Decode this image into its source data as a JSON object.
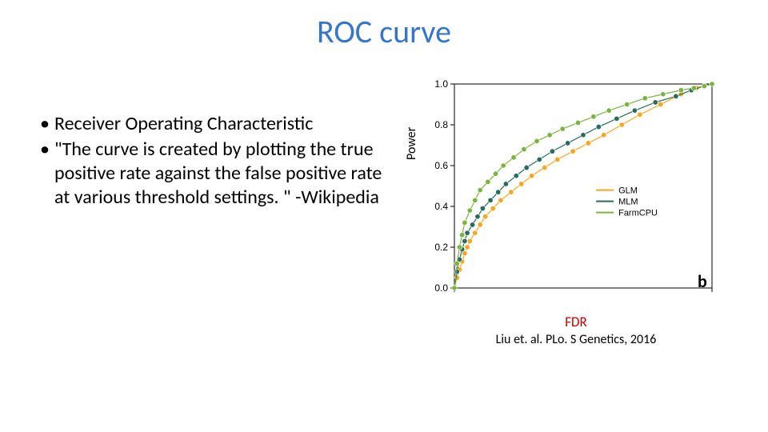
{
  "title": "ROC curve",
  "bullets": [
    "Receiver Operating Characteristic",
    "\"The curve is created by plotting the true positive rate against the false positive rate at various threshold settings. \" -Wikipedia"
  ],
  "chart": {
    "type": "line-with-markers",
    "ylabel": "Power",
    "xlabel": "FDR",
    "panel_label": "b",
    "background_color": "#ffffff",
    "axis_color": "#000000",
    "tick_fontsize": 12,
    "ylim": [
      0.0,
      1.0
    ],
    "yticks": [
      0.0,
      0.2,
      0.4,
      0.6,
      0.8,
      1.0
    ],
    "xlim": [
      0.0,
      1.0
    ],
    "xticks_hidden": true,
    "marker_style": "circle",
    "marker_size": 3.2,
    "line_width": 1.2,
    "legend": {
      "position": "right-inside",
      "fontsize": 11,
      "items": [
        {
          "label": "GLM",
          "color": "#f5a623"
        },
        {
          "label": "MLM",
          "color": "#2a6b5f"
        },
        {
          "label": "FarmCPU",
          "color": "#7cb342"
        }
      ]
    },
    "series": [
      {
        "name": "GLM",
        "color": "#f5a623",
        "x": [
          0.0,
          0.01,
          0.02,
          0.03,
          0.04,
          0.05,
          0.06,
          0.08,
          0.1,
          0.12,
          0.15,
          0.18,
          0.22,
          0.26,
          0.3,
          0.35,
          0.4,
          0.46,
          0.52,
          0.58,
          0.65,
          0.72,
          0.8,
          0.88,
          0.94,
          1.0
        ],
        "y": [
          0.0,
          0.05,
          0.09,
          0.13,
          0.17,
          0.2,
          0.23,
          0.27,
          0.31,
          0.35,
          0.39,
          0.43,
          0.47,
          0.51,
          0.55,
          0.59,
          0.63,
          0.67,
          0.71,
          0.75,
          0.8,
          0.85,
          0.9,
          0.95,
          0.98,
          1.0
        ]
      },
      {
        "name": "MLM",
        "color": "#2a6b5f",
        "x": [
          0.0,
          0.01,
          0.02,
          0.03,
          0.04,
          0.05,
          0.07,
          0.09,
          0.11,
          0.14,
          0.17,
          0.2,
          0.24,
          0.28,
          0.33,
          0.38,
          0.44,
          0.5,
          0.56,
          0.63,
          0.7,
          0.78,
          0.86,
          0.92,
          0.97,
          1.0
        ],
        "y": [
          0.0,
          0.08,
          0.14,
          0.19,
          0.23,
          0.27,
          0.31,
          0.35,
          0.39,
          0.43,
          0.47,
          0.51,
          0.55,
          0.59,
          0.63,
          0.67,
          0.71,
          0.75,
          0.79,
          0.83,
          0.87,
          0.91,
          0.94,
          0.97,
          0.99,
          1.0
        ]
      },
      {
        "name": "FarmCPU",
        "color": "#7cb342",
        "x": [
          0.0,
          0.01,
          0.02,
          0.03,
          0.04,
          0.06,
          0.08,
          0.1,
          0.13,
          0.16,
          0.19,
          0.23,
          0.27,
          0.32,
          0.37,
          0.42,
          0.48,
          0.54,
          0.6,
          0.67,
          0.74,
          0.81,
          0.88,
          0.93,
          0.97,
          1.0
        ],
        "y": [
          0.0,
          0.12,
          0.2,
          0.26,
          0.32,
          0.38,
          0.43,
          0.48,
          0.52,
          0.56,
          0.6,
          0.64,
          0.68,
          0.72,
          0.75,
          0.78,
          0.81,
          0.84,
          0.87,
          0.9,
          0.93,
          0.95,
          0.97,
          0.98,
          0.99,
          1.0
        ]
      }
    ]
  },
  "citation": "Liu et. al. PLo. S Genetics, 2016"
}
